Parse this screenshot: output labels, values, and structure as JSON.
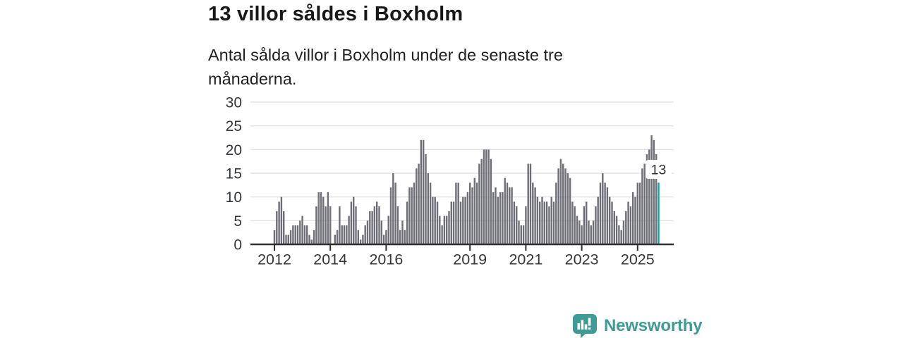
{
  "header": {
    "title": "13 villor såldes i Boxholm",
    "subtitle": "Antal sålda villor i Boxholm under de senaste tre månaderna."
  },
  "branding": {
    "name": "Newsworthy",
    "logo_color": "#3f9b95",
    "logo_glyph_color": "#ffffff"
  },
  "colors": {
    "background": "#ffffff",
    "bar": "#6e6e77",
    "accent": "#13a09b",
    "grid": "#e4e4e6",
    "axis": "#2e2e33",
    "tick_label": "#34383c",
    "annotation_bg": "#ffffff",
    "annotation_text": "#2e3238"
  },
  "chart_data": {
    "type": "bar",
    "title": "13 villor såldes i Boxholm",
    "subtitle": "Antal sålda villor i Boxholm under de senaste tre månaderna.",
    "x_start": "2012-01",
    "x_end": "2025-10",
    "x_unit": "month",
    "ylim": [
      0,
      30
    ],
    "y_ticks": [
      0,
      5,
      10,
      15,
      20,
      25,
      30
    ],
    "x_year_ticks": [
      {
        "label": "2012",
        "month_index": 0
      },
      {
        "label": "2014",
        "month_index": 24
      },
      {
        "label": "2016",
        "month_index": 48
      },
      {
        "label": "2019",
        "month_index": 84
      },
      {
        "label": "2021",
        "month_index": 108
      },
      {
        "label": "2023",
        "month_index": 132
      },
      {
        "label": "2025",
        "month_index": 156
      }
    ],
    "grid": "horizontal",
    "legend": "none",
    "values": [
      3,
      7,
      9,
      10,
      7,
      2,
      2,
      3,
      4,
      4,
      4,
      5,
      6,
      4,
      4,
      2,
      1,
      3,
      8,
      11,
      11,
      10,
      8,
      11,
      8,
      0,
      2,
      3,
      8,
      4,
      4,
      4,
      6,
      9,
      10,
      8,
      3,
      1,
      2,
      4,
      5,
      7,
      7,
      8,
      9,
      8,
      5,
      2,
      3,
      6,
      12,
      15,
      13,
      8,
      3,
      5,
      3,
      9,
      12,
      12,
      13,
      16,
      17,
      22,
      22,
      19,
      15,
      13,
      10,
      10,
      9,
      6,
      4,
      6,
      6,
      7,
      9,
      9,
      13,
      13,
      9,
      10,
      10,
      11,
      13,
      12,
      14,
      13,
      17,
      18,
      20,
      20,
      20,
      18,
      11,
      12,
      10,
      11,
      11,
      14,
      13,
      12,
      12,
      9,
      8,
      5,
      4,
      4,
      8,
      17,
      17,
      13,
      12,
      10,
      9,
      10,
      9,
      9,
      8,
      10,
      9,
      13,
      16,
      18,
      17,
      16,
      15,
      14,
      9,
      8,
      6,
      5,
      4,
      8,
      9,
      5,
      4,
      5,
      8,
      10,
      13,
      15,
      13,
      12,
      10,
      9,
      7,
      6,
      4,
      3,
      5,
      7,
      9,
      8,
      11,
      10,
      13,
      13,
      16,
      17,
      19,
      20,
      23,
      22,
      19,
      13
    ],
    "highlight_last": true,
    "highlight_value": 13,
    "highlight_label": "13"
  }
}
